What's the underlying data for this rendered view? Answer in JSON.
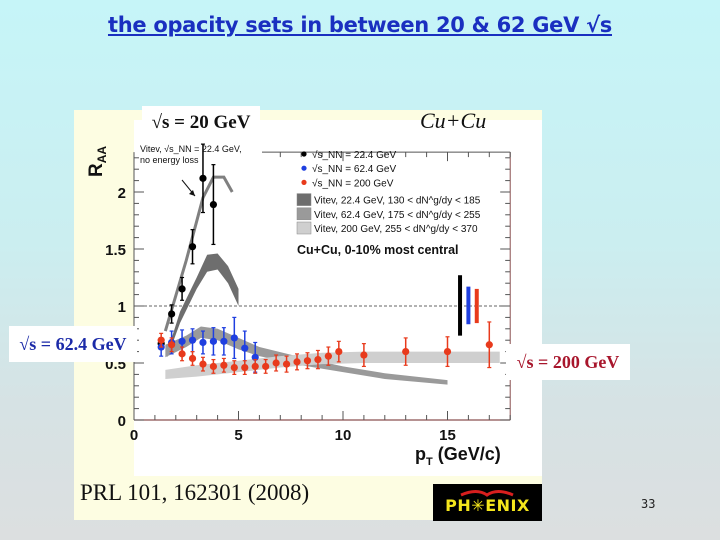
{
  "slide": {
    "title": "the opacity sets in between 20 & 62 GeV √s",
    "page_number": "33",
    "reference": "PRL 101, 162301 (2008)",
    "logo_text": "PH✳ENIX",
    "system_label": "Cu+Cu",
    "annotations": {
      "s20": "√s = 20 GeV",
      "s62": "√s = 62.4 GeV",
      "s200": "√s = 200 GeV"
    }
  },
  "chart_data": {
    "type": "scatter",
    "title": "Cu+Cu, 0-10% most central",
    "xlabel": "p_T (GeV/c)",
    "ylabel": "R_AA",
    "xlim": [
      0,
      18
    ],
    "ylim": [
      0,
      2.35
    ],
    "x_ticks": [
      0,
      5,
      10,
      15
    ],
    "y_ticks": [
      0,
      0.5,
      1,
      1.5,
      2
    ],
    "reference_line": 1,
    "grid": false,
    "legend_position": "upper right",
    "legend": [
      "√s_NN = 22.4 GeV",
      "√s_NN = 62.4 GeV",
      "√s_NN = 200 GeV",
      "Vitev, 22.4 GeV, 130 < dN^g/dy < 185",
      "Vitev, 62.4 GeV, 175 < dN^g/dy < 255",
      "Vitev, 200 GeV, 255 < dN^g/dy < 370",
      "Cu+Cu, 0-10% most central"
    ],
    "inner_annotation": "Vitev, √s_NN = 22.4 GeV, no energy loss",
    "series": [
      {
        "name": "√s_NN = 22.4 GeV",
        "color": "#000000",
        "x": [
          1.3,
          1.8,
          2.3,
          2.8,
          3.3,
          3.8
        ],
        "y": [
          0.67,
          0.93,
          1.15,
          1.52,
          2.12,
          1.89
        ],
        "err": [
          0.05,
          0.08,
          0.1,
          0.15,
          0.3,
          0.35
        ]
      },
      {
        "name": "√s_NN = 62.4 GeV",
        "color": "#1f3fe0",
        "x": [
          1.3,
          1.8,
          2.3,
          2.8,
          3.3,
          3.8,
          4.3,
          4.8,
          5.3,
          5.8
        ],
        "y": [
          0.64,
          0.68,
          0.69,
          0.7,
          0.68,
          0.69,
          0.69,
          0.72,
          0.63,
          0.55
        ],
        "err": [
          0.08,
          0.1,
          0.1,
          0.1,
          0.1,
          0.12,
          0.12,
          0.18,
          0.15,
          0.13
        ]
      },
      {
        "name": "√s_NN = 200 GeV",
        "color": "#e83a1c",
        "x": [
          1.3,
          1.8,
          2.3,
          2.8,
          3.3,
          3.8,
          4.3,
          4.8,
          5.3,
          5.8,
          6.3,
          6.8,
          7.3,
          7.8,
          8.3,
          8.8,
          9.3,
          9.8,
          11,
          13,
          15,
          17
        ],
        "y": [
          0.7,
          0.66,
          0.58,
          0.54,
          0.49,
          0.47,
          0.48,
          0.46,
          0.46,
          0.47,
          0.47,
          0.5,
          0.49,
          0.51,
          0.52,
          0.53,
          0.56,
          0.6,
          0.57,
          0.6,
          0.6,
          0.66
        ],
        "err": [
          0.06,
          0.06,
          0.06,
          0.06,
          0.06,
          0.06,
          0.06,
          0.06,
          0.06,
          0.06,
          0.06,
          0.07,
          0.07,
          0.07,
          0.07,
          0.08,
          0.08,
          0.09,
          0.1,
          0.12,
          0.13,
          0.2
        ]
      }
    ],
    "bands": [
      {
        "name": "Vitev, 22.4 GeV, no energy loss",
        "color": "#808080",
        "type": "line",
        "x": [
          1.5,
          2.5,
          3.3,
          3.8,
          4.3,
          4.7
        ],
        "y": [
          0.78,
          1.4,
          1.95,
          2.13,
          2.13,
          2.0
        ]
      },
      {
        "name": "Vitev, 22.4 GeV, 130 < dN^g/dy < 185",
        "color": "#6e6e6e",
        "x": [
          1.6,
          2.2,
          3.0,
          3.5,
          4.0,
          4.5,
          5.0
        ],
        "upper": [
          0.6,
          0.95,
          1.25,
          1.45,
          1.46,
          1.35,
          1.15
        ],
        "lower": [
          0.55,
          0.85,
          1.15,
          1.3,
          1.32,
          1.2,
          1.0
        ]
      },
      {
        "name": "Vitev, 62.4 GeV, 175 < dN^g/dy < 255",
        "color": "#9a9a9a",
        "x": [
          1.5,
          2.5,
          3.2,
          4.0,
          5.0,
          6.0,
          8.0,
          10.0,
          12.0,
          15.0
        ],
        "upper": [
          0.66,
          0.74,
          0.82,
          0.8,
          0.72,
          0.64,
          0.55,
          0.47,
          0.41,
          0.35
        ],
        "lower": [
          0.55,
          0.64,
          0.72,
          0.7,
          0.62,
          0.56,
          0.48,
          0.42,
          0.36,
          0.31
        ]
      },
      {
        "name": "Vitev, 200 GeV, 255 < dN^g/dy < 370",
        "color": "#cfcfcf",
        "x": [
          1.5,
          3.0,
          5.0,
          7.0,
          9.0,
          11.0,
          13.0,
          15.0,
          17.5
        ],
        "upper": [
          0.44,
          0.48,
          0.52,
          0.56,
          0.59,
          0.6,
          0.6,
          0.6,
          0.6
        ],
        "lower": [
          0.36,
          0.38,
          0.42,
          0.46,
          0.49,
          0.5,
          0.5,
          0.5,
          0.5
        ]
      }
    ],
    "normalization_bars": [
      {
        "name": "22.4 GeV",
        "color": "#000000",
        "x": 15.6,
        "ymin": 0.74,
        "ymax": 1.27
      },
      {
        "name": "62.4 GeV",
        "color": "#1f3fe0",
        "x": 16.0,
        "ymin": 0.84,
        "ymax": 1.17
      },
      {
        "name": "200 GeV",
        "color": "#e83a1c",
        "x": 16.4,
        "ymin": 0.85,
        "ymax": 1.15
      }
    ]
  }
}
